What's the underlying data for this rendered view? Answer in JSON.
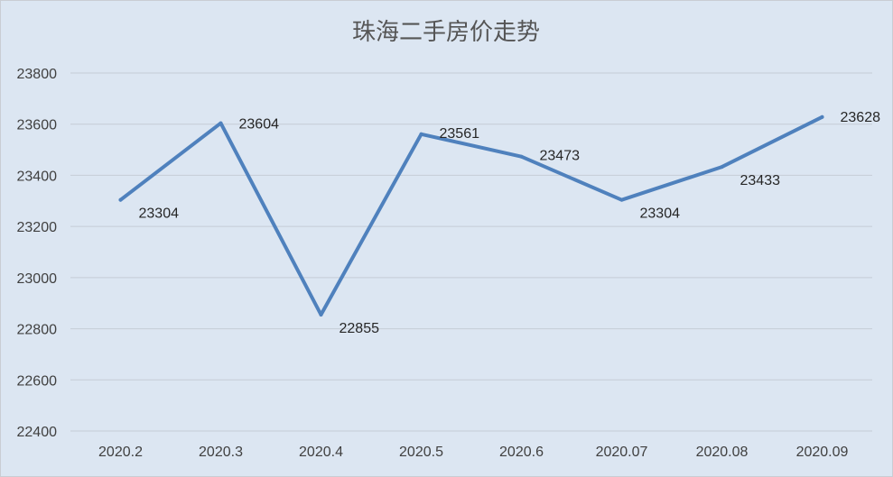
{
  "chart_data": {
    "type": "line",
    "title": "珠海二手房价走势",
    "categories": [
      "2020.2",
      "2020.3",
      "2020.4",
      "2020.5",
      "2020.6",
      "2020.07",
      "2020.08",
      "2020.09"
    ],
    "series": [
      {
        "values": [
          23304,
          23604,
          22855,
          23561,
          23473,
          23304,
          23433,
          23628
        ]
      }
    ],
    "data_labels": [
      "23304",
      "23604",
      "22855",
      "23561",
      "23473",
      "23304",
      "23433",
      "23628"
    ],
    "y_ticks": [
      "22400",
      "22600",
      "22800",
      "23000",
      "23200",
      "23400",
      "23600",
      "23800"
    ],
    "ylim": [
      22400,
      23800
    ],
    "grid": true,
    "legend": "none",
    "colors": {
      "series": "#4f81bd",
      "background": "#dce6f2",
      "grid": "#c5ccd6"
    }
  }
}
